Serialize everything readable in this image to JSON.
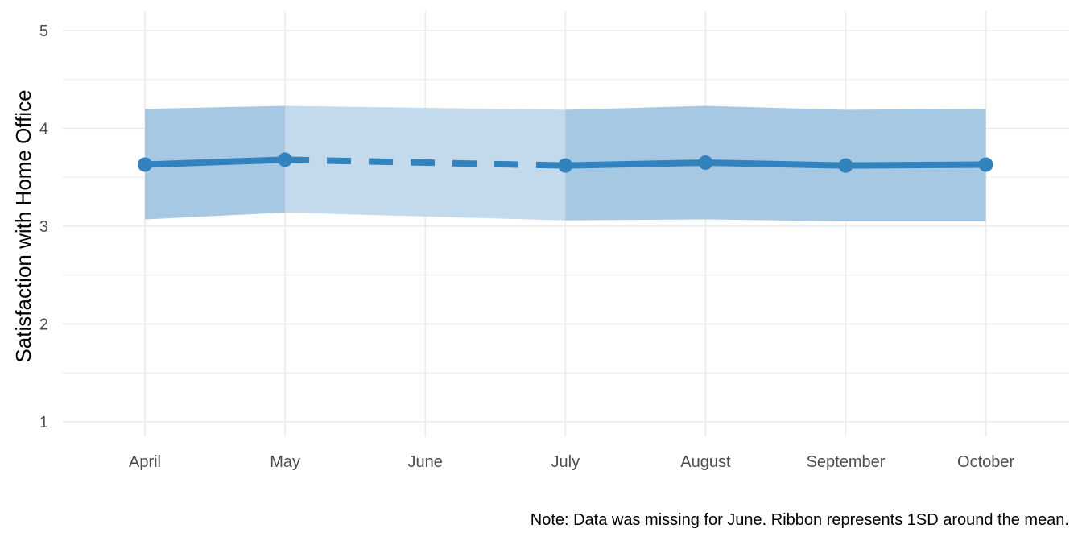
{
  "chart_data": {
    "type": "line",
    "categories": [
      "April",
      "May",
      "June",
      "July",
      "August",
      "September",
      "October"
    ],
    "series": [
      {
        "values": [
          3.63,
          3.68,
          null,
          3.62,
          3.65,
          3.62,
          3.63
        ],
        "sd_lower": [
          3.07,
          3.14,
          null,
          3.06,
          3.07,
          3.05,
          3.05
        ],
        "sd_upper": [
          4.2,
          4.23,
          null,
          4.19,
          4.23,
          4.19,
          4.2
        ],
        "imputed_values": [
          null,
          3.68,
          3.65,
          3.62,
          null,
          null,
          null
        ],
        "imputed_sd_lower": [
          null,
          3.14,
          3.1,
          3.06,
          null,
          null,
          null
        ],
        "imputed_sd_upper": [
          null,
          4.23,
          4.21,
          4.19,
          null,
          null,
          null
        ]
      }
    ],
    "title": "",
    "xlabel": "",
    "ylabel": "Satisfaction with Home Office",
    "yticks": [
      "1",
      "2",
      "3",
      "4",
      "5"
    ],
    "ylim": [
      1,
      5
    ],
    "grid": true,
    "legend": "none",
    "caption": "Note: Data was missing for June. Ribbon represents 1SD around the mean.",
    "colors": {
      "line": "#3182bd",
      "ribbon_observed": "#a6c8e2",
      "ribbon_missing": "#c3d9ec",
      "grid": "#ebebeb",
      "tick_text": "#4d4d4d"
    }
  }
}
